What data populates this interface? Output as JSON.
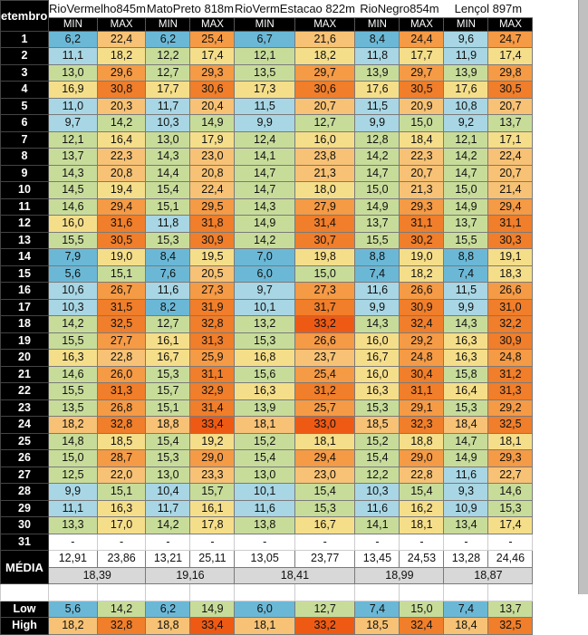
{
  "header": {
    "corner": "etembro",
    "sub_min": "MIN",
    "sub_max": "MAX"
  },
  "stations": [
    "RioVermelho845m",
    "MatoPreto 818m",
    "RioVermEstacao 822m",
    "RioNegro854m",
    "Lençol 897m"
  ],
  "colors": {
    "blue": "#6bb8d6",
    "lightblue": "#a8d6e4",
    "green": "#c8dc9a",
    "yellow": "#f5de8a",
    "lightorange": "#f7c275",
    "orange": "#f59a45",
    "deeporange": "#f07e2a",
    "red": "#ee5a14"
  },
  "rows": [
    {
      "day": "1",
      "values": [
        "6,2",
        "22,4",
        "6,2",
        "25,4",
        "6,7",
        "21,6",
        "8,4",
        "24,4",
        "9,6",
        "24,7"
      ]
    },
    {
      "day": "2",
      "values": [
        "11,1",
        "18,2",
        "12,2",
        "17,4",
        "12,1",
        "18,2",
        "11,8",
        "17,7",
        "11,9",
        "17,4"
      ]
    },
    {
      "day": "3",
      "values": [
        "13,0",
        "29,6",
        "12,7",
        "29,3",
        "13,5",
        "29,7",
        "13,9",
        "29,7",
        "13,9",
        "29,8"
      ]
    },
    {
      "day": "4",
      "values": [
        "16,9",
        "30,8",
        "17,7",
        "30,6",
        "17,3",
        "30,6",
        "17,6",
        "30,5",
        "17,6",
        "30,5"
      ]
    },
    {
      "day": "5",
      "values": [
        "11,0",
        "20,3",
        "11,7",
        "20,4",
        "11,5",
        "20,7",
        "11,5",
        "20,9",
        "10,8",
        "20,7"
      ]
    },
    {
      "day": "6",
      "values": [
        "9,7",
        "14,2",
        "10,3",
        "14,9",
        "9,9",
        "12,7",
        "9,9",
        "15,0",
        "9,2",
        "13,7"
      ]
    },
    {
      "day": "7",
      "values": [
        "12,1",
        "16,4",
        "13,0",
        "17,9",
        "12,4",
        "16,0",
        "12,8",
        "18,4",
        "12,1",
        "17,1"
      ]
    },
    {
      "day": "8",
      "values": [
        "13,7",
        "22,3",
        "14,3",
        "23,0",
        "14,1",
        "23,8",
        "14,2",
        "22,3",
        "14,2",
        "22,4"
      ]
    },
    {
      "day": "9",
      "values": [
        "14,3",
        "20,8",
        "14,4",
        "20,8",
        "14,7",
        "21,3",
        "14,7",
        "20,7",
        "14,7",
        "20,7"
      ]
    },
    {
      "day": "10",
      "values": [
        "14,5",
        "19,4",
        "15,4",
        "22,4",
        "14,7",
        "18,0",
        "15,0",
        "21,3",
        "15,0",
        "21,4"
      ]
    },
    {
      "day": "11",
      "values": [
        "14,6",
        "29,4",
        "15,1",
        "29,5",
        "14,3",
        "27,9",
        "14,9",
        "29,3",
        "14,9",
        "29,4"
      ]
    },
    {
      "day": "12",
      "values": [
        "16,0",
        "31,6",
        "11,8",
        "31,8",
        "14,9",
        "31,4",
        "13,7",
        "31,1",
        "13,7",
        "31,1"
      ]
    },
    {
      "day": "13",
      "values": [
        "15,5",
        "30,5",
        "15,3",
        "30,9",
        "14,2",
        "30,7",
        "15,5",
        "30,2",
        "15,5",
        "30,3"
      ]
    },
    {
      "day": "14",
      "values": [
        "7,9",
        "19,0",
        "8,4",
        "19,5",
        "7,0",
        "19,8",
        "8,8",
        "19,0",
        "8,8",
        "19,1"
      ]
    },
    {
      "day": "15",
      "values": [
        "5,6",
        "15,1",
        "7,6",
        "20,5",
        "6,0",
        "15,0",
        "7,4",
        "18,2",
        "7,4",
        "18,3"
      ]
    },
    {
      "day": "16",
      "values": [
        "10,6",
        "26,7",
        "11,6",
        "27,3",
        "9,7",
        "27,3",
        "11,6",
        "26,6",
        "11,5",
        "26,6"
      ]
    },
    {
      "day": "17",
      "values": [
        "10,3",
        "31,5",
        "8,2",
        "31,9",
        "10,1",
        "31,7",
        "9,9",
        "30,9",
        "9,9",
        "31,0"
      ]
    },
    {
      "day": "18",
      "values": [
        "14,2",
        "32,5",
        "12,7",
        "32,8",
        "13,2",
        "33,2",
        "14,3",
        "32,4",
        "14,3",
        "32,2"
      ]
    },
    {
      "day": "19",
      "values": [
        "15,5",
        "27,7",
        "16,1",
        "31,3",
        "15,3",
        "26,6",
        "16,0",
        "29,2",
        "16,3",
        "30,9"
      ]
    },
    {
      "day": "20",
      "values": [
        "16,3",
        "22,8",
        "16,7",
        "25,9",
        "16,8",
        "23,7",
        "16,7",
        "24,8",
        "16,3",
        "24,8"
      ]
    },
    {
      "day": "21",
      "values": [
        "14,6",
        "26,0",
        "15,3",
        "31,1",
        "15,6",
        "25,4",
        "16,0",
        "30,4",
        "15,8",
        "31,2"
      ]
    },
    {
      "day": "22",
      "values": [
        "15,5",
        "31,3",
        "15,7",
        "32,9",
        "16,3",
        "31,2",
        "16,3",
        "31,1",
        "16,4",
        "31,3"
      ]
    },
    {
      "day": "23",
      "values": [
        "13,5",
        "26,8",
        "15,1",
        "31,4",
        "13,9",
        "25,7",
        "15,3",
        "29,1",
        "15,3",
        "29,2"
      ]
    },
    {
      "day": "24",
      "values": [
        "18,2",
        "32,8",
        "18,8",
        "33,4",
        "18,1",
        "33,0",
        "18,5",
        "32,3",
        "18,4",
        "32,5"
      ]
    },
    {
      "day": "25",
      "values": [
        "14,8",
        "18,5",
        "15,4",
        "19,2",
        "15,2",
        "18,1",
        "15,2",
        "18,8",
        "14,7",
        "18,1"
      ]
    },
    {
      "day": "26",
      "values": [
        "15,0",
        "28,7",
        "15,3",
        "29,0",
        "15,4",
        "29,4",
        "15,4",
        "29,0",
        "14,9",
        "29,3"
      ]
    },
    {
      "day": "27",
      "values": [
        "12,5",
        "22,0",
        "13,0",
        "23,3",
        "13,0",
        "23,0",
        "12,2",
        "22,8",
        "11,6",
        "22,7"
      ]
    },
    {
      "day": "28",
      "values": [
        "9,9",
        "15,1",
        "10,4",
        "15,7",
        "10,1",
        "15,4",
        "10,3",
        "15,4",
        "9,3",
        "14,6"
      ]
    },
    {
      "day": "29",
      "values": [
        "11,1",
        "16,3",
        "11,7",
        "16,1",
        "11,6",
        "15,3",
        "11,6",
        "16,2",
        "10,9",
        "15,3"
      ]
    },
    {
      "day": "30",
      "values": [
        "13,3",
        "17,0",
        "14,2",
        "17,8",
        "13,8",
        "16,7",
        "14,1",
        "18,1",
        "13,4",
        "17,4"
      ]
    },
    {
      "day": "31",
      "values": [
        "-",
        "-",
        "-",
        "-",
        "-",
        "-",
        "-",
        "-",
        "-",
        "-"
      ]
    }
  ],
  "summary": {
    "media_label": "MÉDIA",
    "media_values": [
      "12,91",
      "23,86",
      "13,21",
      "25,11",
      "13,05",
      "23,77",
      "13,45",
      "24,53",
      "13,28",
      "24,46"
    ],
    "avg_values": [
      "18,39",
      "19,16",
      "18,41",
      "18,99",
      "18,87"
    ],
    "low_label": "Low",
    "low_values": [
      "5,6",
      "14,2",
      "6,2",
      "14,9",
      "6,0",
      "12,7",
      "7,4",
      "15,0",
      "7,4",
      "13,7"
    ],
    "high_label": "High",
    "high_values": [
      "18,2",
      "32,8",
      "18,8",
      "33,4",
      "18,1",
      "33,2",
      "18,5",
      "32,4",
      "18,4",
      "32,5"
    ]
  }
}
